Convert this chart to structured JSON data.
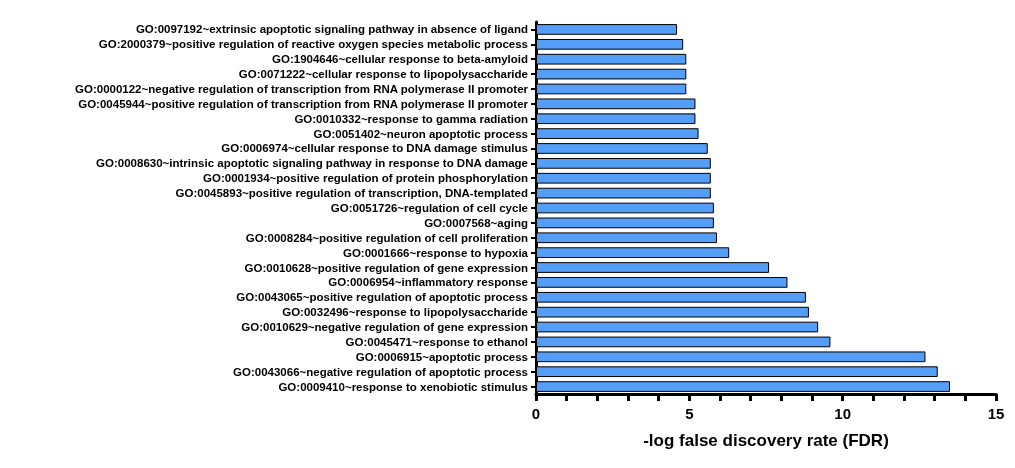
{
  "chart_data": {
    "type": "bar",
    "orientation": "horizontal",
    "xlabel": "-log false discovery rate (FDR)",
    "categories": [
      "GO:0097192~extrinsic apoptotic signaling pathway in absence of ligand",
      "GO:2000379~positive regulation of reactive oxygen species metabolic process",
      "GO:1904646~cellular response to beta-amyloid",
      "GO:0071222~cellular response to lipopolysaccharide",
      "GO:0000122~negative regulation of transcription from RNA polymerase II promoter",
      "GO:0045944~positive regulation of transcription from RNA polymerase II promoter",
      "GO:0010332~response to gamma radiation",
      "GO:0051402~neuron apoptotic process",
      "GO:0006974~cellular response to DNA damage stimulus",
      "GO:0008630~intrinsic apoptotic signaling pathway in response to DNA damage",
      "GO:0001934~positive regulation of protein phosphorylation",
      "GO:0045893~positive regulation of transcription, DNA-templated",
      "GO:0051726~regulation of cell cycle",
      "GO:0007568~aging",
      "GO:0008284~positive regulation of cell proliferation",
      "GO:0001666~response to hypoxia",
      "GO:0010628~positive regulation of gene expression",
      "GO:0006954~inflammatory response",
      "GO:0043065~positive regulation of apoptotic process",
      "GO:0032496~response to lipopolysaccharide",
      "GO:0010629~negative regulation of gene expression",
      "GO:0045471~response to ethanol",
      "GO:0006915~apoptotic process",
      "GO:0043066~negative regulation of apoptotic process",
      "GO:0009410~response to xenobiotic stimulus"
    ],
    "values": [
      4.6,
      4.8,
      4.9,
      4.9,
      4.9,
      5.2,
      5.2,
      5.3,
      5.6,
      5.7,
      5.7,
      5.7,
      5.8,
      5.8,
      5.9,
      6.3,
      7.6,
      8.2,
      8.8,
      8.9,
      9.2,
      9.6,
      12.7,
      13.1,
      13.5
    ],
    "color": "#559ef8",
    "xlim": [
      0,
      15
    ],
    "xticks": [
      0,
      {
        "value": 1,
        "label": null
      },
      {
        "value": 2,
        "label": null
      },
      {
        "value": 3,
        "label": null
      },
      {
        "value": 4,
        "label": null
      },
      5,
      {
        "value": 6,
        "label": null
      },
      {
        "value": 7,
        "label": null
      },
      {
        "value": 8,
        "label": null
      },
      {
        "value": 9,
        "label": null
      },
      10,
      {
        "value": 11,
        "label": null
      },
      {
        "value": 12,
        "label": null
      },
      {
        "value": 13,
        "label": null
      },
      {
        "value": 14,
        "label": null
      },
      15
    ],
    "grid": false
  }
}
